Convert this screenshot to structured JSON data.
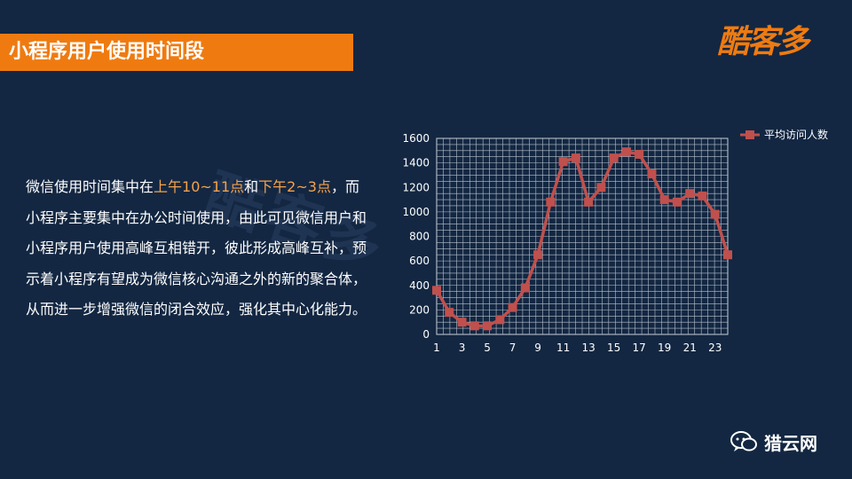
{
  "header": {
    "title": "小程序用户使用时间段"
  },
  "brand": {
    "logo_text": "酷客多",
    "watermark_text": "酷客多",
    "accent": "#ef7b10"
  },
  "description": {
    "part1": "微信使用时间集中在",
    "highlight1": "上午10~11点",
    "part2": "和",
    "highlight2": "下午2~3点",
    "part3": "，而小程序主要集中在办公时间使用，由此可见微信用户和小程序用户使用高峰互相错开，彼此形成高峰互补，预示着小程序有望成为微信核心沟通之外的新的聚合体，从而进一步增强微信的闭合效应，强化其中心化能力。"
  },
  "chart_data": {
    "type": "line",
    "x": [
      1,
      2,
      3,
      4,
      5,
      6,
      7,
      8,
      9,
      10,
      11,
      12,
      13,
      14,
      15,
      16,
      17,
      18,
      19,
      20,
      21,
      22,
      23,
      24
    ],
    "x_tick_labels": [
      "1",
      "3",
      "5",
      "7",
      "9",
      "11",
      "13",
      "15",
      "17",
      "19",
      "21",
      "23"
    ],
    "series": [
      {
        "name": "平均访问人数",
        "values": [
          360,
          180,
          100,
          70,
          70,
          120,
          220,
          380,
          650,
          1080,
          1410,
          1440,
          1080,
          1200,
          1440,
          1490,
          1470,
          1310,
          1100,
          1080,
          1150,
          1130,
          980,
          650
        ],
        "color": "#c0504d"
      }
    ],
    "ylim": [
      0,
      1600
    ],
    "y_ticks": [
      0,
      200,
      400,
      600,
      800,
      1000,
      1200,
      1400,
      1600
    ],
    "grid": true,
    "legend": "top-right"
  },
  "footer": {
    "icon": "wechat-icon",
    "text": "猎云网"
  }
}
